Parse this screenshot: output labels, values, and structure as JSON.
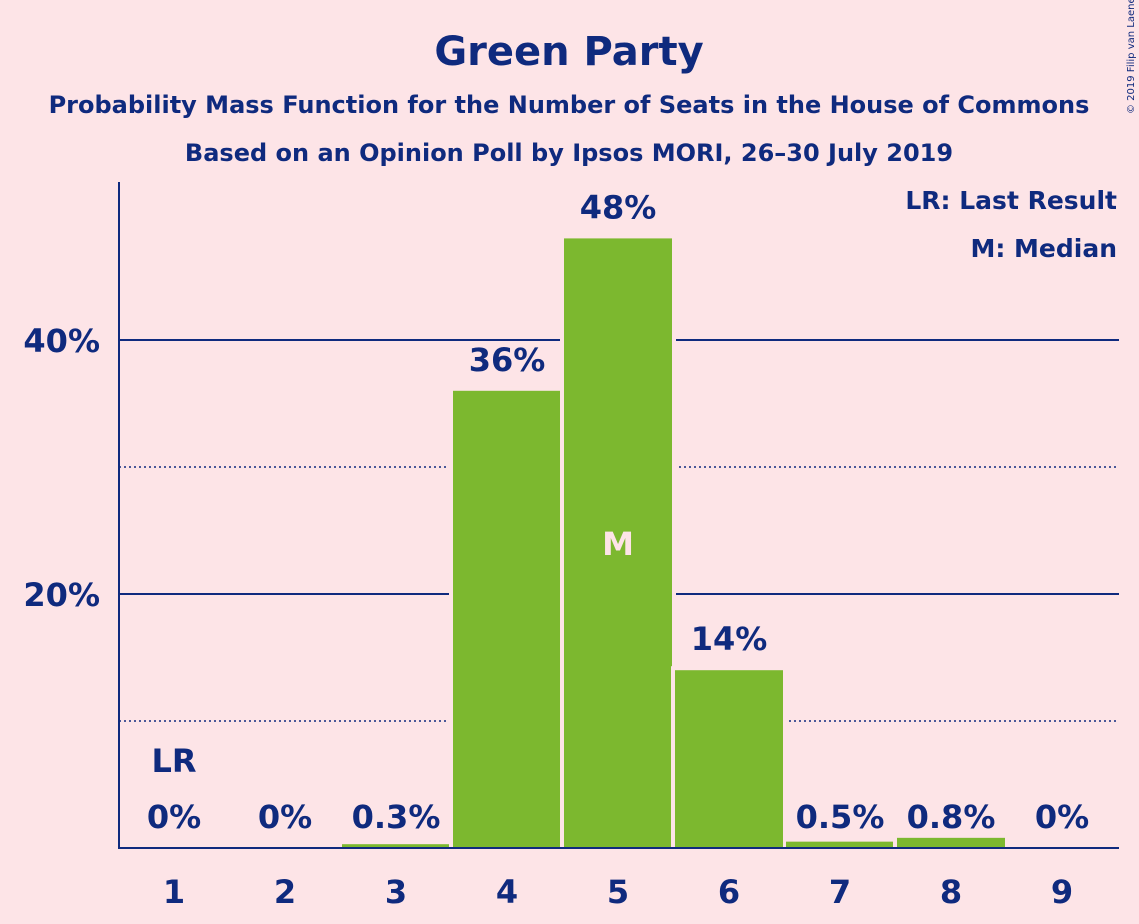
{
  "title": "Green Party",
  "subtitle1": "Probability Mass Function for the Number of Seats in the House of Commons",
  "subtitle2": "Based on an Opinion Poll by Ipsos MORI, 26–30 July 2019",
  "legend": {
    "lr": "LR: Last Result",
    "m": "M: Median"
  },
  "copyright": "© 2019 Filip van Laenen",
  "colors": {
    "background": "#fde4e7",
    "bar": "#7cb82f",
    "text": "#0f2a7e"
  },
  "chart_data": {
    "type": "bar",
    "categories": [
      "1",
      "2",
      "3",
      "4",
      "5",
      "6",
      "7",
      "8",
      "9"
    ],
    "values": [
      0,
      0,
      0.3,
      36,
      48,
      14,
      0.5,
      0.8,
      0
    ],
    "value_labels": [
      "0%",
      "0%",
      "0.3%",
      "36%",
      "48%",
      "14%",
      "0.5%",
      "0.8%",
      "0%"
    ],
    "ylim": [
      0,
      52
    ],
    "yticks": [
      20,
      40
    ],
    "ytick_labels": [
      "20%",
      "40%"
    ],
    "minor_gridlines": [
      10,
      30
    ],
    "last_result_category": "1",
    "last_result_label": "LR",
    "median_category": "5",
    "median_label": "M",
    "grid": true,
    "legend_position": "top-right"
  }
}
